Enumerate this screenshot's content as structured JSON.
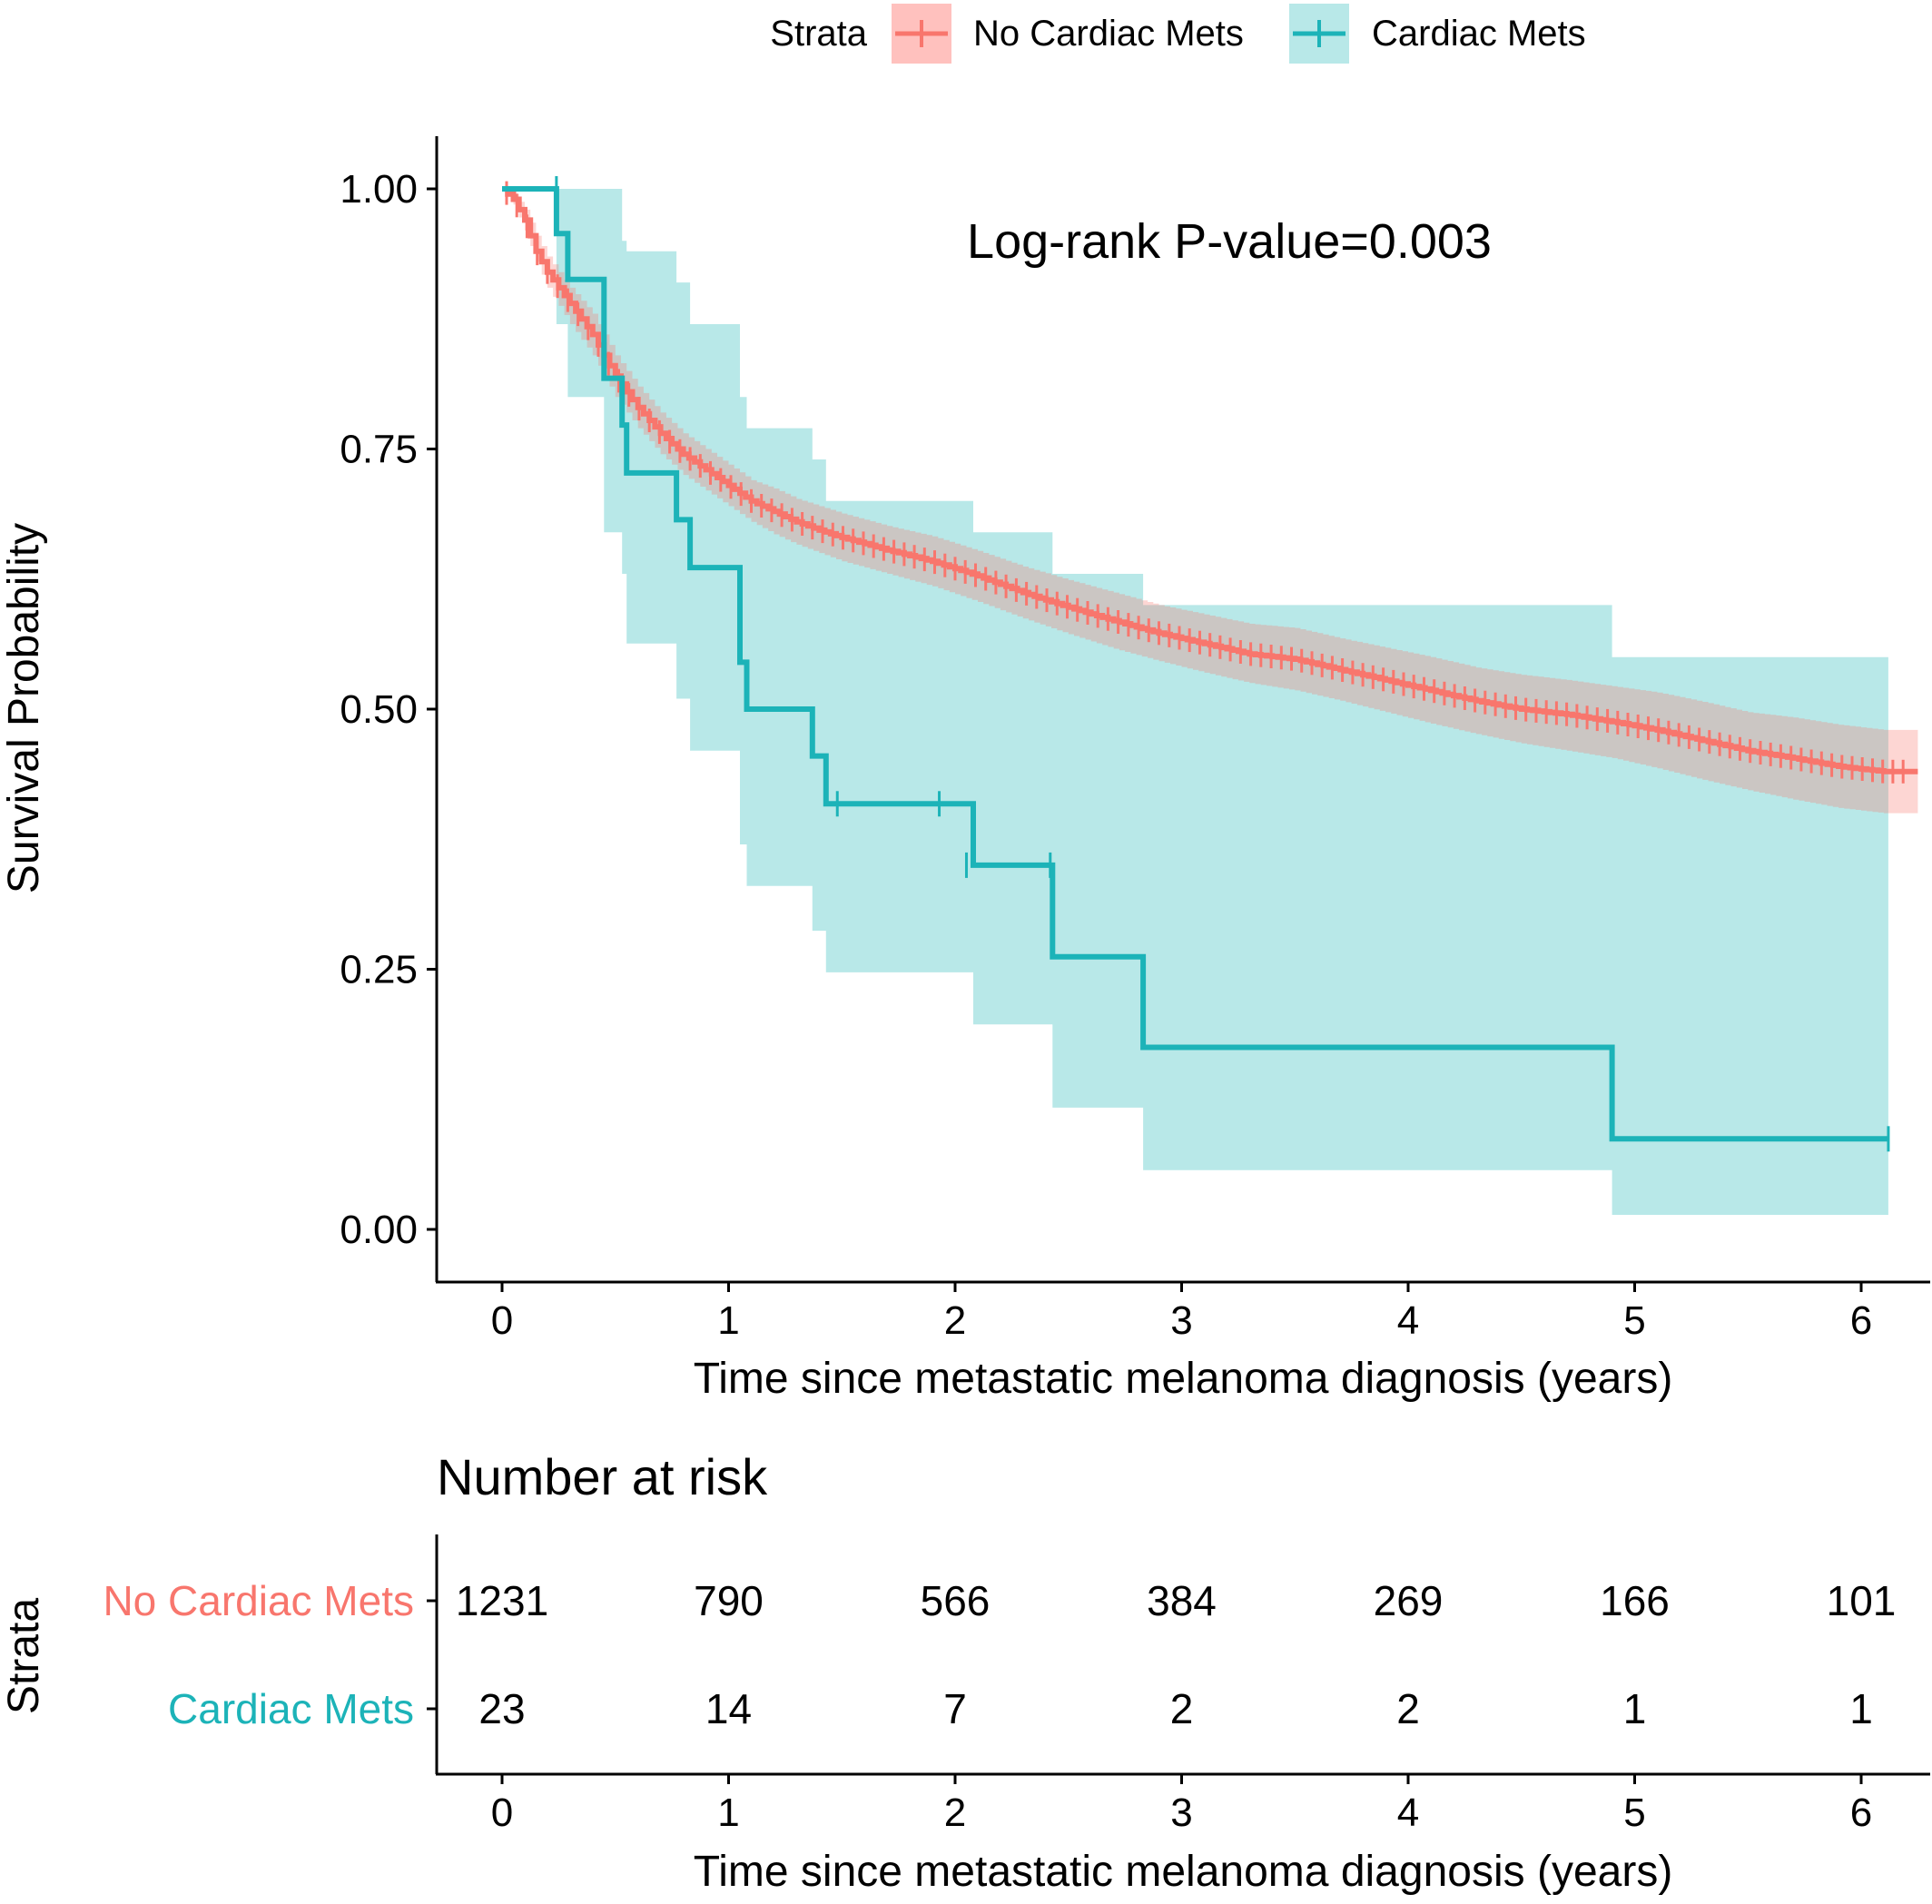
{
  "chart_data": {
    "type": "line",
    "subtype": "kaplan-meier",
    "title": "",
    "annotation": "Log-rank P-value=0.003",
    "xlabel": "Time since metastatic melanoma diagnosis (years)",
    "ylabel": "Survival Probability",
    "xlim": [
      0,
      6.25
    ],
    "ylim": [
      0,
      1
    ],
    "xticks": [
      0,
      1,
      2,
      3,
      4,
      5,
      6
    ],
    "yticks": [
      0.0,
      0.25,
      0.5,
      0.75,
      1.0
    ],
    "ytick_labels": [
      "0.00",
      "0.25",
      "0.50",
      "0.75",
      "1.00"
    ],
    "grid": false,
    "legend": {
      "title": "Strata",
      "position": "top",
      "entries": [
        "No Cardiac Mets",
        "Cardiac Mets"
      ]
    },
    "series": [
      {
        "name": "No Cardiac Mets",
        "color": "#F8766D",
        "ci_color": "#FFC1BE",
        "x": [
          0,
          0.05,
          0.1,
          0.15,
          0.2,
          0.3,
          0.4,
          0.5,
          0.6,
          0.7,
          0.8,
          0.9,
          1.0,
          1.1,
          1.2,
          1.3,
          1.4,
          1.5,
          1.7,
          1.9,
          2.1,
          2.3,
          2.5,
          2.7,
          2.9,
          3.1,
          3.3,
          3.5,
          3.7,
          3.9,
          4.1,
          4.3,
          4.5,
          4.7,
          4.9,
          5.1,
          5.3,
          5.5,
          5.7,
          5.9,
          6.1,
          6.25
        ],
        "survival": [
          1.0,
          0.99,
          0.97,
          0.94,
          0.92,
          0.89,
          0.86,
          0.82,
          0.79,
          0.765,
          0.745,
          0.73,
          0.715,
          0.7,
          0.69,
          0.68,
          0.672,
          0.665,
          0.653,
          0.642,
          0.628,
          0.612,
          0.598,
          0.585,
          0.573,
          0.563,
          0.553,
          0.548,
          0.538,
          0.528,
          0.518,
          0.508,
          0.5,
          0.495,
          0.488,
          0.48,
          0.47,
          0.46,
          0.453,
          0.445,
          0.44,
          0.44
        ],
        "ci_lower": [
          1.0,
          0.985,
          0.96,
          0.93,
          0.905,
          0.87,
          0.84,
          0.8,
          0.77,
          0.745,
          0.725,
          0.71,
          0.695,
          0.68,
          0.668,
          0.658,
          0.65,
          0.642,
          0.63,
          0.618,
          0.603,
          0.587,
          0.572,
          0.558,
          0.546,
          0.535,
          0.525,
          0.518,
          0.508,
          0.497,
          0.486,
          0.476,
          0.467,
          0.46,
          0.453,
          0.443,
          0.432,
          0.422,
          0.413,
          0.405,
          0.4,
          0.4
        ],
        "ci_upper": [
          1.0,
          0.995,
          0.98,
          0.955,
          0.935,
          0.905,
          0.88,
          0.84,
          0.81,
          0.785,
          0.765,
          0.75,
          0.735,
          0.72,
          0.712,
          0.702,
          0.695,
          0.688,
          0.676,
          0.666,
          0.652,
          0.637,
          0.624,
          0.612,
          0.6,
          0.591,
          0.582,
          0.578,
          0.568,
          0.559,
          0.55,
          0.54,
          0.533,
          0.528,
          0.522,
          0.516,
          0.507,
          0.497,
          0.492,
          0.485,
          0.48,
          0.48
        ]
      },
      {
        "name": "Cardiac Mets",
        "color": "#1CB3B8",
        "ci_color": "#B8E8E8",
        "step_x": [
          0,
          0.24,
          0.29,
          0.45,
          0.53,
          0.55,
          0.77,
          0.83,
          1.05,
          1.08,
          1.37,
          1.43,
          2.08,
          2.43,
          2.83,
          4.9,
          6.12
        ],
        "step_survival": [
          1.0,
          0.957,
          0.913,
          0.818,
          0.773,
          0.727,
          0.682,
          0.636,
          0.545,
          0.5,
          0.455,
          0.409,
          0.35,
          0.262,
          0.175,
          0.087,
          0.087
        ],
        "ci_lower": [
          1.0,
          0.87,
          0.8,
          0.67,
          0.63,
          0.563,
          0.51,
          0.46,
          0.37,
          0.33,
          0.287,
          0.247,
          0.197,
          0.117,
          0.057,
          0.014,
          0.014
        ],
        "ci_upper": [
          1.0,
          1.0,
          1.0,
          1.0,
          0.95,
          0.94,
          0.91,
          0.87,
          0.8,
          0.77,
          0.74,
          0.7,
          0.67,
          0.63,
          0.6,
          0.55,
          0.53
        ],
        "censor_x": [
          0.24,
          1.48,
          1.93,
          2.05,
          2.42,
          6.12
        ],
        "censor_y": [
          1.0,
          0.409,
          0.409,
          0.35,
          0.35,
          0.087
        ]
      }
    ],
    "risk_table": {
      "title": "Number at risk",
      "ylabel": "Strata",
      "xlabel": "Time since metastatic melanoma diagnosis (years)",
      "times": [
        0,
        1,
        2,
        3,
        4,
        5,
        6
      ],
      "rows": [
        {
          "name": "No Cardiac Mets",
          "color": "#F8766D",
          "values": [
            "1231",
            "790",
            "566",
            "384",
            "269",
            "166",
            "101"
          ]
        },
        {
          "name": "Cardiac Mets",
          "color": "#1CB3B8",
          "values": [
            "23",
            "14",
            "7",
            "2",
            "2",
            "1",
            "1"
          ]
        }
      ]
    }
  }
}
